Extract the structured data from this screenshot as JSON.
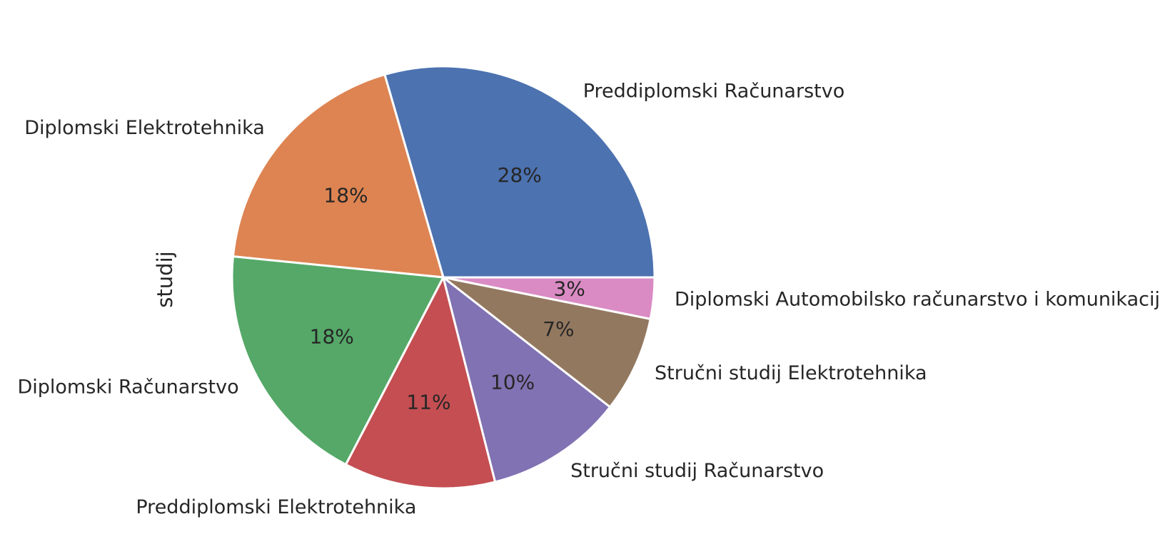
{
  "chart_data": {
    "type": "pie",
    "ylabel": "studij",
    "autopct_format": "%",
    "slices": [
      {
        "label": "Preddiplomski Računarstvo",
        "percent": 28,
        "color": "#4c72b0"
      },
      {
        "label": "Diplomski Elektrotehnika",
        "percent": 18,
        "color": "#dd8452"
      },
      {
        "label": "Diplomski Računarstvo",
        "percent": 18,
        "color": "#55a868"
      },
      {
        "label": "Preddiplomski Elektrotehnika",
        "percent": 11,
        "color": "#c44e52"
      },
      {
        "label": "Stručni studij Računarstvo",
        "percent": 10,
        "color": "#8172b3"
      },
      {
        "label": "Stručni studij Elektrotehnika",
        "percent": 7,
        "color": "#937860"
      },
      {
        "label": "Diplomski Automobilsko računarstvo i komunikacije",
        "percent": 3,
        "color": "#da8bc3"
      }
    ]
  }
}
